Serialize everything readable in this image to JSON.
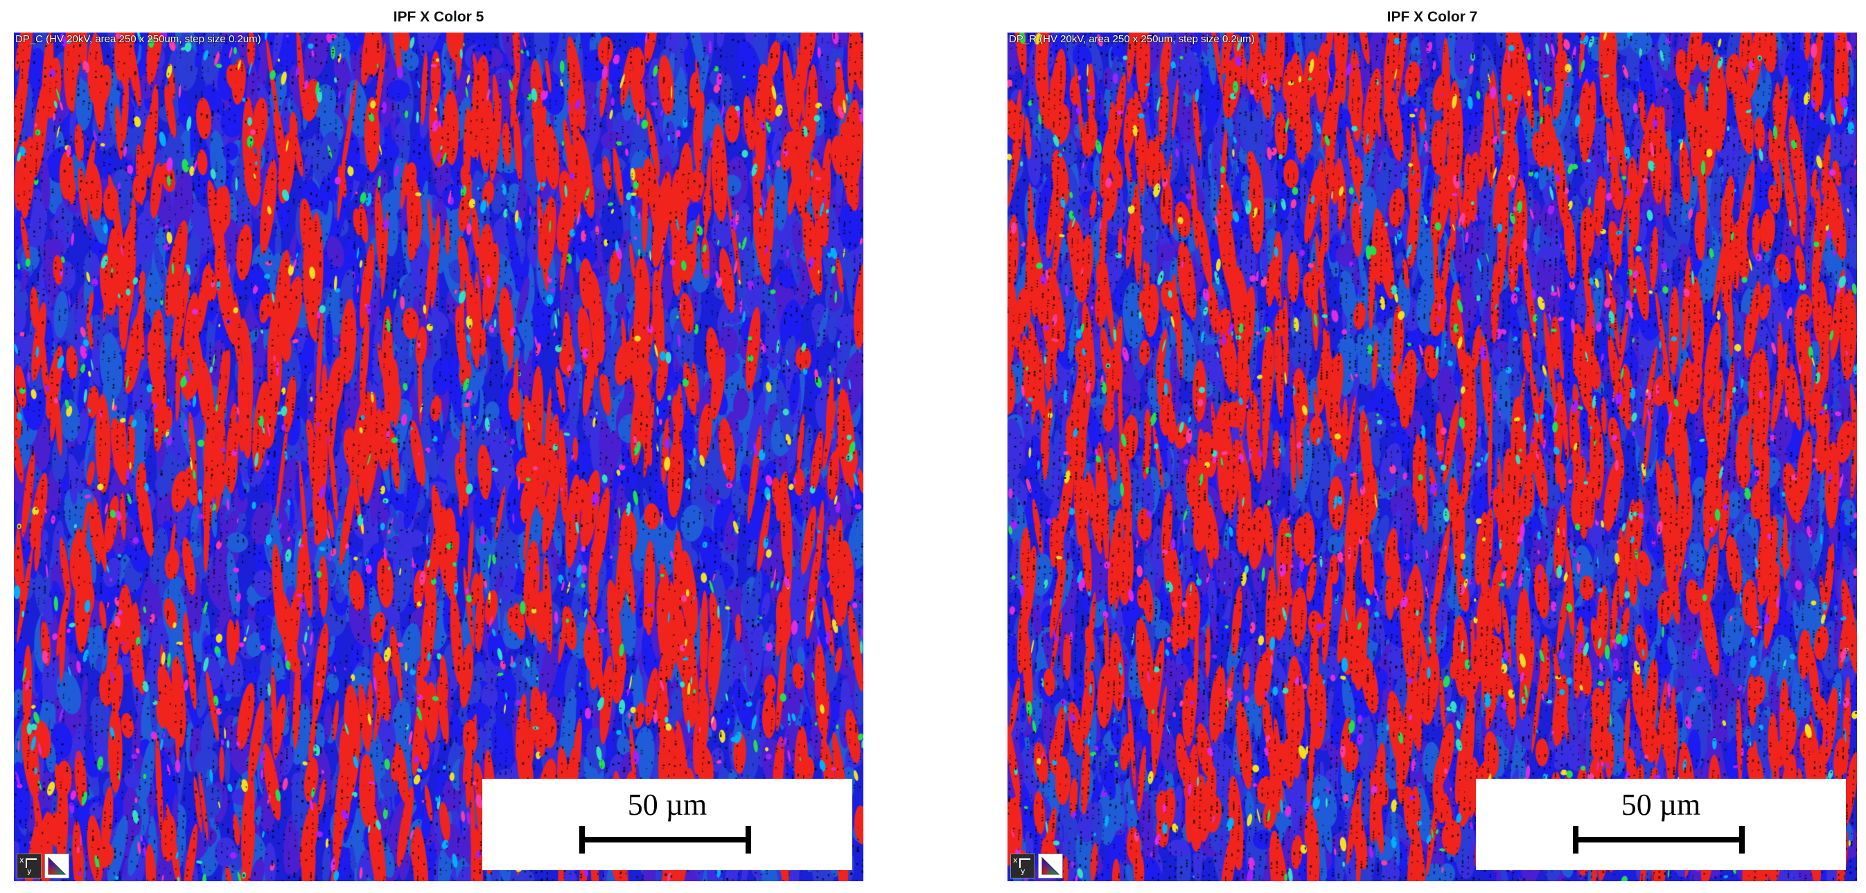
{
  "panels": [
    {
      "title": "IPF X Color 5",
      "caption": "DP_C (HV 20kV, area 250 x 250um, step size 0.2um)",
      "scale_label": "50 µm",
      "seed": 5
    },
    {
      "title": "IPF X Color 7",
      "caption": "DP_R (HV 20kV, area 250 x 250um, step size 0.2um)",
      "scale_label": "50 µm",
      "seed": 7
    }
  ],
  "axis_icon": {
    "x_label": "x",
    "y_label": "y",
    "icon": "axis-orientation-icon"
  },
  "ipf_key": {
    "icon": "ipf-color-triangle-icon",
    "colors": [
      "#ff0000",
      "#00ff00",
      "#0000ff"
    ]
  },
  "map_colors": {
    "base_blue": "#1a1fd8",
    "red": "#f0241c",
    "blue_variants": [
      "#1c1cf0",
      "#2a3bd6",
      "#3a2fe0",
      "#1e5cd8",
      "#4a1fd0"
    ],
    "accents": [
      "#e02be0",
      "#ff3aa0",
      "#20e050",
      "#30e0c0",
      "#f0e020",
      "#a020ff",
      "#00b0ff"
    ],
    "boundary": "#000000"
  }
}
